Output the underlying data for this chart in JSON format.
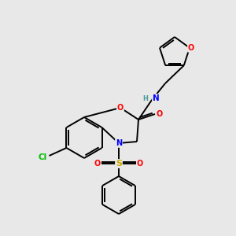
{
  "bg_color": "#e8e8e8",
  "bond_color": "#000000",
  "atom_colors": {
    "O": "#ff0000",
    "N": "#0000ff",
    "S": "#ccaa00",
    "Cl": "#00bb00",
    "C": "#000000",
    "H": "#4a9a9a"
  },
  "figsize": [
    3.0,
    3.0
  ],
  "dpi": 100
}
